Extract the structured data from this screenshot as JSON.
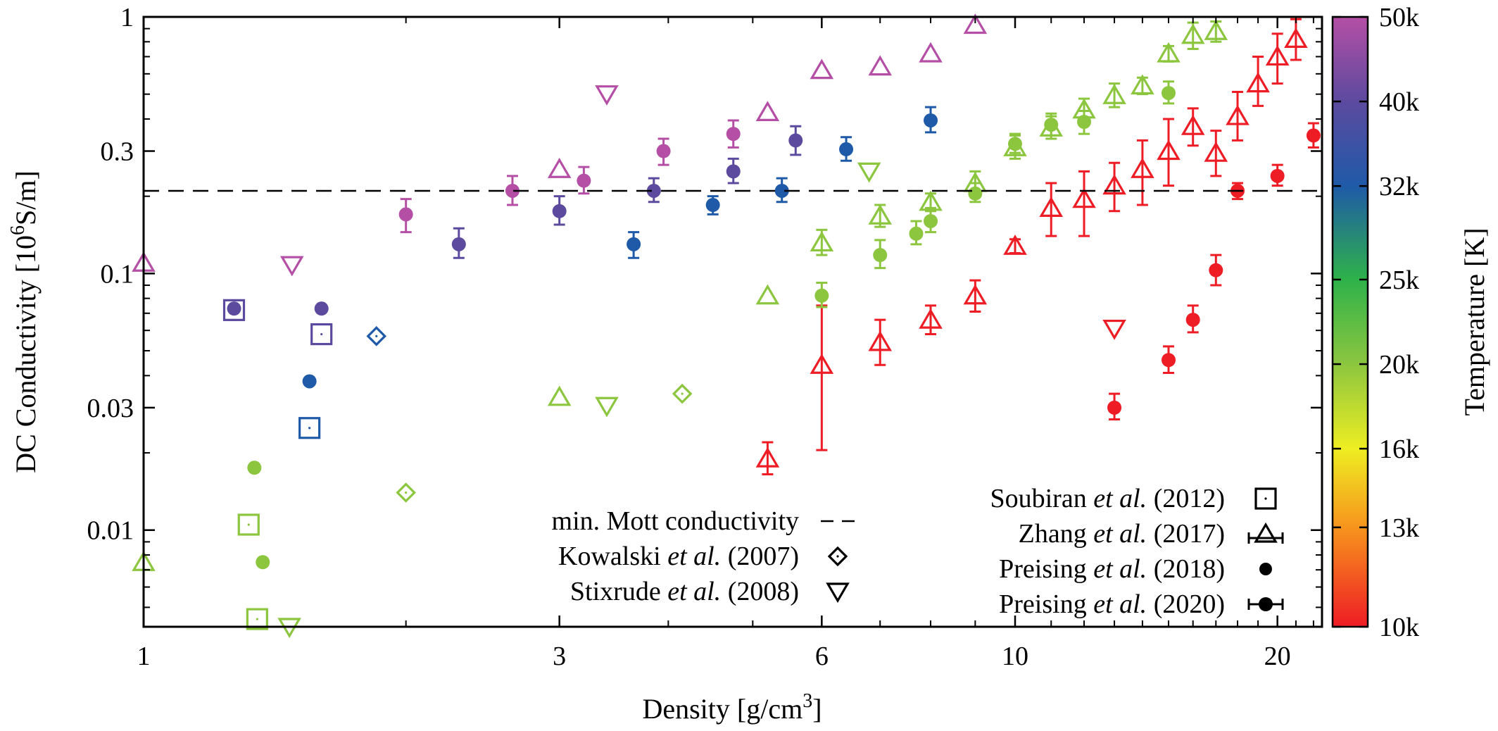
{
  "chart_data": {
    "type": "scatter",
    "x_scale": "log",
    "y_scale": "log",
    "xlabel": "Density [g/cm3]",
    "xlabel_parts": {
      "base": "Density [g/cm",
      "sup": "3",
      "close": "]"
    },
    "ylabel": "DC Conductivity [10^6 S/m]",
    "ylabel_parts": {
      "pre": "DC Conductivity [10",
      "sup": "6",
      "post": "S/m]"
    },
    "xlim": [
      1,
      22.5
    ],
    "ylim": [
      0.0042,
      1
    ],
    "x_ticks": [
      1,
      3,
      6,
      10,
      20
    ],
    "x_tick_labels": [
      "1",
      "3",
      "6",
      "10",
      "20"
    ],
    "y_ticks": [
      1,
      0.3,
      0.1,
      0.03,
      0.01
    ],
    "y_tick_labels": [
      "1",
      "0.3",
      "0.1",
      "0.03",
      "0.01"
    ],
    "colorbar": {
      "label": "Temperature [K]",
      "range": [
        10000,
        50000
      ],
      "tick_values": [
        50000,
        40000,
        32000,
        25000,
        20000,
        16000,
        13000,
        10000
      ],
      "tick_labels": [
        "50k",
        "40k",
        "32k",
        "25k",
        "20k",
        "16k",
        "13k",
        "10k"
      ],
      "stops": [
        {
          "t": 10000,
          "color": "#ee1c25"
        },
        {
          "t": 13000,
          "color": "#f7941d"
        },
        {
          "t": 16000,
          "color": "#eeee22"
        },
        {
          "t": 20000,
          "color": "#8cc63f"
        },
        {
          "t": 25000,
          "color": "#2eb24a"
        },
        {
          "t": 32000,
          "color": "#1f5aa8"
        },
        {
          "t": 40000,
          "color": "#5c4a9f"
        },
        {
          "t": 50000,
          "color": "#b44fa5"
        }
      ]
    },
    "reference_line": {
      "label": "min. Mott conductivity",
      "y": 0.21
    },
    "legend_left": [
      {
        "name": "min. Mott conductivity",
        "symbol": "dash"
      },
      {
        "pre": "Kowalski ",
        "italic": "et al.",
        "post": " (2007)",
        "symbol": "diamond"
      },
      {
        "pre": "Stixrude ",
        "italic": "et al.",
        "post": " (2008)",
        "symbol": "triangle-down"
      }
    ],
    "legend_right": [
      {
        "pre": "Soubiran ",
        "italic": "et al.",
        "post": " (2012)",
        "symbol": "square"
      },
      {
        "pre": "Zhang ",
        "italic": "et al.",
        "post": " (2017)",
        "symbol": "triangle-up-errorbar"
      },
      {
        "pre": "Preising ",
        "italic": "et al.",
        "post": " (2018)",
        "symbol": "dot"
      },
      {
        "pre": "Preising ",
        "italic": "et al.",
        "post": " (2020)",
        "symbol": "dot-errorbar"
      }
    ],
    "series": [
      {
        "name": "Soubiran et al. (2012)",
        "marker": "square",
        "points": [
          {
            "x": 1.27,
            "y": 0.072,
            "t": 40000
          },
          {
            "x": 1.6,
            "y": 0.058,
            "t": 40000
          },
          {
            "x": 1.55,
            "y": 0.025,
            "t": 32000
          },
          {
            "x": 1.32,
            "y": 0.0105,
            "t": 20000
          },
          {
            "x": 1.35,
            "y": 0.0045,
            "t": 20000
          }
        ]
      },
      {
        "name": "Zhang et al. (2017)",
        "marker": "triangle-up",
        "points": [
          {
            "x": 1.0,
            "y": 0.11,
            "t": 50000
          },
          {
            "x": 3.0,
            "y": 0.255,
            "t": 50000
          },
          {
            "x": 5.2,
            "y": 0.425,
            "t": 50000
          },
          {
            "x": 6.0,
            "y": 0.62,
            "t": 50000
          },
          {
            "x": 7.0,
            "y": 0.64,
            "t": 50000
          },
          {
            "x": 8.0,
            "y": 0.72,
            "t": 50000
          },
          {
            "x": 9.0,
            "y": 0.93,
            "t": 50000
          },
          {
            "x": 1.0,
            "y": 0.0075,
            "t": 20000
          },
          {
            "x": 3.0,
            "y": 0.033,
            "t": 20000
          },
          {
            "x": 5.2,
            "y": 0.082,
            "t": 20000
          },
          {
            "x": 6.0,
            "y": 0.132,
            "t": 20000,
            "err": [
              0.118,
              0.148
            ]
          },
          {
            "x": 7.0,
            "y": 0.168,
            "t": 20000,
            "err": [
              0.152,
              0.185
            ]
          },
          {
            "x": 8.0,
            "y": 0.19,
            "t": 20000,
            "err": [
              0.175,
              0.205
            ]
          },
          {
            "x": 9.0,
            "y": 0.225,
            "t": 20000,
            "err": [
              0.205,
              0.25
            ]
          },
          {
            "x": 10.0,
            "y": 0.31,
            "t": 20000,
            "err": [
              0.28,
              0.345
            ]
          },
          {
            "x": 11.0,
            "y": 0.37,
            "t": 20000,
            "err": [
              0.335,
              0.41
            ]
          },
          {
            "x": 12.0,
            "y": 0.435,
            "t": 20000,
            "err": [
              0.395,
              0.48
            ]
          },
          {
            "x": 13.0,
            "y": 0.495,
            "t": 20000,
            "err": [
              0.445,
              0.55
            ]
          },
          {
            "x": 14.0,
            "y": 0.54,
            "t": 20000,
            "err": [
              0.5,
              0.58
            ]
          },
          {
            "x": 15.0,
            "y": 0.72,
            "t": 20000,
            "err": [
              0.67,
              0.77
            ]
          },
          {
            "x": 16.0,
            "y": 0.85,
            "t": 20000,
            "err": [
              0.75,
              0.95
            ]
          },
          {
            "x": 17.0,
            "y": 0.88,
            "t": 20000,
            "err": [
              0.8,
              0.96
            ]
          },
          {
            "x": 5.2,
            "y": 0.019,
            "t": 10000,
            "err": [
              0.0165,
              0.022
            ]
          },
          {
            "x": 6.0,
            "y": 0.044,
            "t": 10000,
            "err": [
              0.0205,
              0.075
            ]
          },
          {
            "x": 7.0,
            "y": 0.054,
            "t": 10000,
            "err": [
              0.044,
              0.066
            ]
          },
          {
            "x": 8.0,
            "y": 0.066,
            "t": 10000,
            "err": [
              0.058,
              0.075
            ]
          },
          {
            "x": 9.0,
            "y": 0.082,
            "t": 10000,
            "err": [
              0.071,
              0.094
            ]
          },
          {
            "x": 10.0,
            "y": 0.128,
            "t": 10000,
            "err": [
              0.12,
              0.136
            ]
          },
          {
            "x": 11.0,
            "y": 0.18,
            "t": 10000,
            "err": [
              0.14,
              0.225
            ]
          },
          {
            "x": 12.0,
            "y": 0.195,
            "t": 10000,
            "err": [
              0.14,
              0.25
            ]
          },
          {
            "x": 13.0,
            "y": 0.22,
            "t": 10000,
            "err": [
              0.175,
              0.27
            ]
          },
          {
            "x": 14.0,
            "y": 0.255,
            "t": 10000,
            "err": [
              0.185,
              0.33
            ]
          },
          {
            "x": 15.0,
            "y": 0.3,
            "t": 10000,
            "err": [
              0.22,
              0.4
            ]
          },
          {
            "x": 16.0,
            "y": 0.375,
            "t": 10000,
            "err": [
              0.315,
              0.44
            ]
          },
          {
            "x": 17.0,
            "y": 0.295,
            "t": 10000,
            "err": [
              0.24,
              0.36
            ]
          },
          {
            "x": 18.0,
            "y": 0.41,
            "t": 10000,
            "err": [
              0.33,
              0.51
            ]
          },
          {
            "x": 19.0,
            "y": 0.55,
            "t": 10000,
            "err": [
              0.45,
              0.7
            ]
          },
          {
            "x": 20.0,
            "y": 0.7,
            "t": 10000,
            "err": [
              0.55,
              0.86
            ]
          },
          {
            "x": 21.0,
            "y": 0.82,
            "t": 10000,
            "err": [
              0.68,
              0.98
            ]
          }
        ]
      },
      {
        "name": "Preising et al. (2018)",
        "marker": "dot",
        "points": [
          {
            "x": 1.27,
            "y": 0.073,
            "t": 40000
          },
          {
            "x": 1.6,
            "y": 0.073,
            "t": 40000
          },
          {
            "x": 1.55,
            "y": 0.038,
            "t": 32000
          },
          {
            "x": 1.34,
            "y": 0.0175,
            "t": 20000
          },
          {
            "x": 1.37,
            "y": 0.0075,
            "t": 20000
          }
        ]
      },
      {
        "name": "Preising et al. (2020)",
        "marker": "dot",
        "points": [
          {
            "x": 2.0,
            "y": 0.17,
            "t": 50000,
            "err": [
              0.145,
              0.195
            ]
          },
          {
            "x": 2.65,
            "y": 0.21,
            "t": 50000,
            "err": [
              0.185,
              0.24
            ]
          },
          {
            "x": 3.2,
            "y": 0.23,
            "t": 50000,
            "err": [
              0.205,
              0.26
            ]
          },
          {
            "x": 3.95,
            "y": 0.3,
            "t": 50000,
            "err": [
              0.265,
              0.335
            ]
          },
          {
            "x": 4.75,
            "y": 0.35,
            "t": 50000,
            "err": [
              0.31,
              0.395
            ]
          },
          {
            "x": 2.3,
            "y": 0.13,
            "t": 40000,
            "err": [
              0.115,
              0.15
            ]
          },
          {
            "x": 3.0,
            "y": 0.175,
            "t": 40000,
            "err": [
              0.155,
              0.2
            ]
          },
          {
            "x": 3.85,
            "y": 0.21,
            "t": 40000,
            "err": [
              0.19,
              0.235
            ]
          },
          {
            "x": 4.75,
            "y": 0.25,
            "t": 40000,
            "err": [
              0.225,
              0.28
            ]
          },
          {
            "x": 5.6,
            "y": 0.33,
            "t": 40000,
            "err": [
              0.29,
              0.375
            ]
          },
          {
            "x": 3.65,
            "y": 0.13,
            "t": 32000,
            "err": [
              0.115,
              0.145
            ]
          },
          {
            "x": 4.5,
            "y": 0.185,
            "t": 32000,
            "err": [
              0.17,
              0.2
            ]
          },
          {
            "x": 5.4,
            "y": 0.21,
            "t": 32000,
            "err": [
              0.19,
              0.235
            ]
          },
          {
            "x": 6.4,
            "y": 0.305,
            "t": 32000,
            "err": [
              0.275,
              0.34
            ]
          },
          {
            "x": 8.0,
            "y": 0.395,
            "t": 32000,
            "err": [
              0.355,
              0.445
            ]
          },
          {
            "x": 6.0,
            "y": 0.082,
            "t": 20000,
            "err": [
              0.074,
              0.092
            ]
          },
          {
            "x": 7.0,
            "y": 0.118,
            "t": 20000,
            "err": [
              0.105,
              0.135
            ]
          },
          {
            "x": 7.7,
            "y": 0.143,
            "t": 20000,
            "err": [
              0.13,
              0.16
            ]
          },
          {
            "x": 8.0,
            "y": 0.16,
            "t": 20000,
            "err": [
              0.145,
              0.18
            ]
          },
          {
            "x": 9.0,
            "y": 0.205,
            "t": 20000,
            "err": [
              0.19,
              0.225
            ]
          },
          {
            "x": 10.0,
            "y": 0.32,
            "t": 20000,
            "err": [
              0.295,
              0.35
            ]
          },
          {
            "x": 11.0,
            "y": 0.38,
            "t": 20000,
            "err": [
              0.345,
              0.42
            ]
          },
          {
            "x": 12.0,
            "y": 0.39,
            "t": 20000,
            "err": [
              0.35,
              0.43
            ]
          },
          {
            "x": 15.0,
            "y": 0.505,
            "t": 20000,
            "err": [
              0.46,
              0.56
            ]
          },
          {
            "x": 13.0,
            "y": 0.03,
            "t": 10000,
            "err": [
              0.027,
              0.034
            ]
          },
          {
            "x": 15.0,
            "y": 0.046,
            "t": 10000,
            "err": [
              0.041,
              0.052
            ]
          },
          {
            "x": 16.0,
            "y": 0.066,
            "t": 10000,
            "err": [
              0.059,
              0.075
            ]
          },
          {
            "x": 17.0,
            "y": 0.103,
            "t": 10000,
            "err": [
              0.09,
              0.118
            ]
          },
          {
            "x": 18.0,
            "y": 0.21,
            "t": 10000,
            "err": [
              0.195,
              0.225
            ]
          },
          {
            "x": 20.0,
            "y": 0.24,
            "t": 10000,
            "err": [
              0.22,
              0.265
            ]
          },
          {
            "x": 22.0,
            "y": 0.345,
            "t": 10000,
            "err": [
              0.31,
              0.385
            ]
          }
        ]
      },
      {
        "name": "Kowalski et al. (2007)",
        "marker": "diamond",
        "points": [
          {
            "x": 1.85,
            "y": 0.057,
            "t": 32000
          },
          {
            "x": 2.0,
            "y": 0.014,
            "t": 20000
          },
          {
            "x": 4.15,
            "y": 0.034,
            "t": 20000
          }
        ]
      },
      {
        "name": "Stixrude et al. (2008)",
        "marker": "triangle-down",
        "points": [
          {
            "x": 1.48,
            "y": 0.108,
            "t": 50000
          },
          {
            "x": 3.4,
            "y": 0.5,
            "t": 50000
          },
          {
            "x": 1.47,
            "y": 0.0042,
            "t": 20000
          },
          {
            "x": 3.4,
            "y": 0.0305,
            "t": 20000
          },
          {
            "x": 6.8,
            "y": 0.25,
            "t": 20000
          },
          {
            "x": 13.0,
            "y": 0.061,
            "t": 10000
          }
        ]
      }
    ]
  }
}
